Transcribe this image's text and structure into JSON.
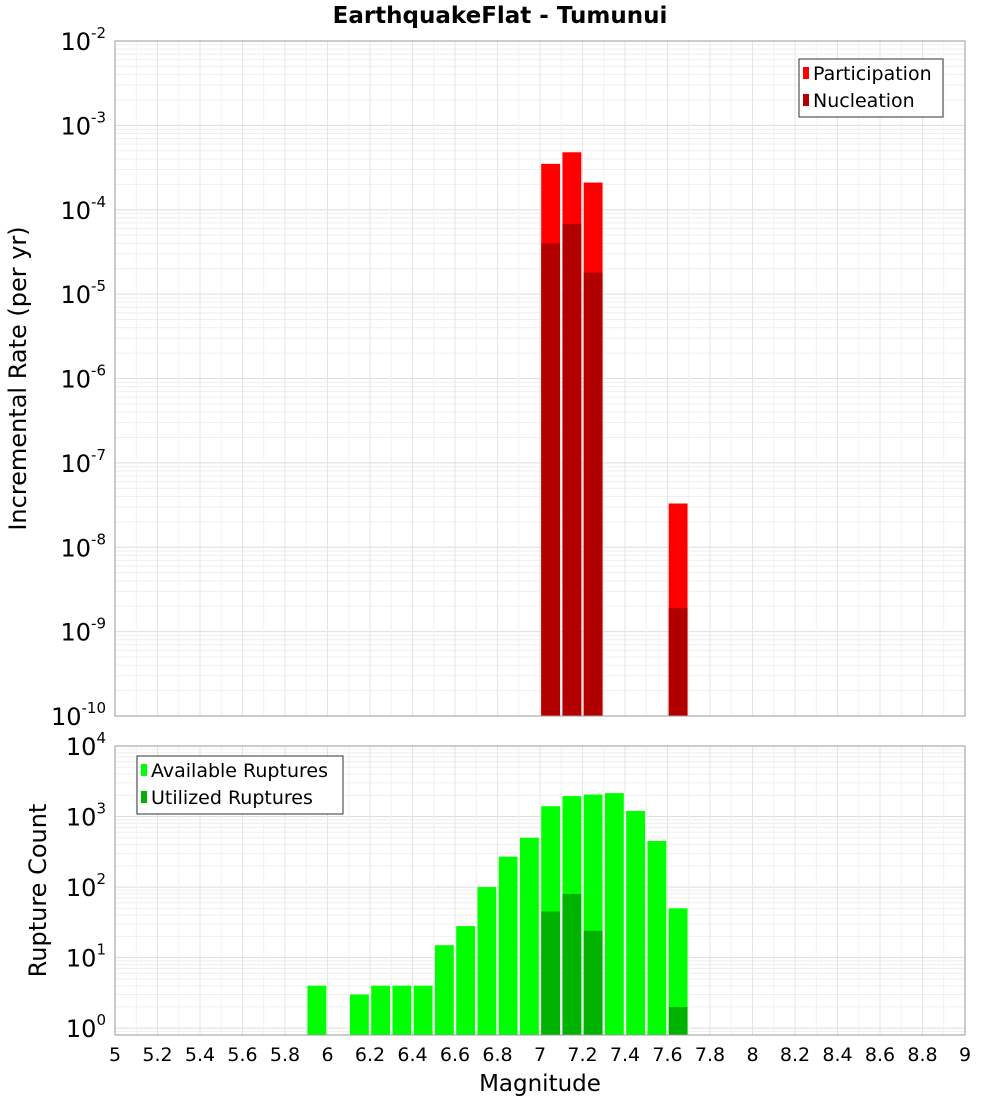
{
  "title": "EarthquakeFlat - Tumunui",
  "xlabel": "Magnitude",
  "chart_data": [
    {
      "type": "bar",
      "title": "EarthquakeFlat - Tumunui",
      "ylabel": "Incremental Rate (per yr)",
      "yscale": "log",
      "ylim": [
        1e-10,
        0.01
      ],
      "xlim": [
        5,
        9
      ],
      "grid": true,
      "legend_position": "top-right",
      "ytick_exponents": [
        "-2",
        "-3",
        "-4",
        "-5",
        "-6",
        "-7",
        "-8",
        "-9",
        "-10"
      ],
      "x": [
        7.05,
        7.15,
        7.25,
        7.65
      ],
      "series": [
        {
          "name": "Participation",
          "color": "#ff0000",
          "values": [
            0.00035,
            0.00048,
            0.00021,
            3.3e-08
          ]
        },
        {
          "name": "Nucleation",
          "color": "#b20000",
          "values": [
            4e-05,
            6.8e-05,
            1.8e-05,
            1.9e-09
          ]
        }
      ]
    },
    {
      "type": "bar",
      "ylabel": "Rupture Count",
      "xlabel": "Magnitude",
      "yscale": "log",
      "ylim": [
        0.8,
        10000
      ],
      "xlim": [
        5,
        9
      ],
      "grid": true,
      "legend_position": "top-left",
      "ytick_exponents": [
        "4",
        "3",
        "2",
        "1",
        "0"
      ],
      "xtick_labels": [
        "5",
        "5.2",
        "5.4",
        "5.6",
        "5.8",
        "6",
        "6.2",
        "6.4",
        "6.6",
        "6.8",
        "7",
        "7.2",
        "7.4",
        "7.6",
        "7.8",
        "8",
        "8.2",
        "8.4",
        "8.6",
        "8.8",
        "9"
      ],
      "x": [
        5.95,
        6.15,
        6.25,
        6.35,
        6.45,
        6.55,
        6.65,
        6.75,
        6.85,
        6.95,
        7.05,
        7.15,
        7.25,
        7.35,
        7.45,
        7.55,
        7.65
      ],
      "series": [
        {
          "name": "Available Ruptures",
          "color": "#00ff00",
          "values": [
            4,
            3,
            4,
            4,
            4,
            15,
            28,
            100,
            270,
            500,
            1400,
            1950,
            2050,
            2150,
            1200,
            450,
            50
          ]
        },
        {
          "name": "Utilized Ruptures",
          "color": "#00b200",
          "values": [
            null,
            null,
            null,
            null,
            null,
            null,
            null,
            null,
            null,
            null,
            45,
            80,
            24,
            null,
            null,
            null,
            2
          ]
        }
      ]
    }
  ]
}
